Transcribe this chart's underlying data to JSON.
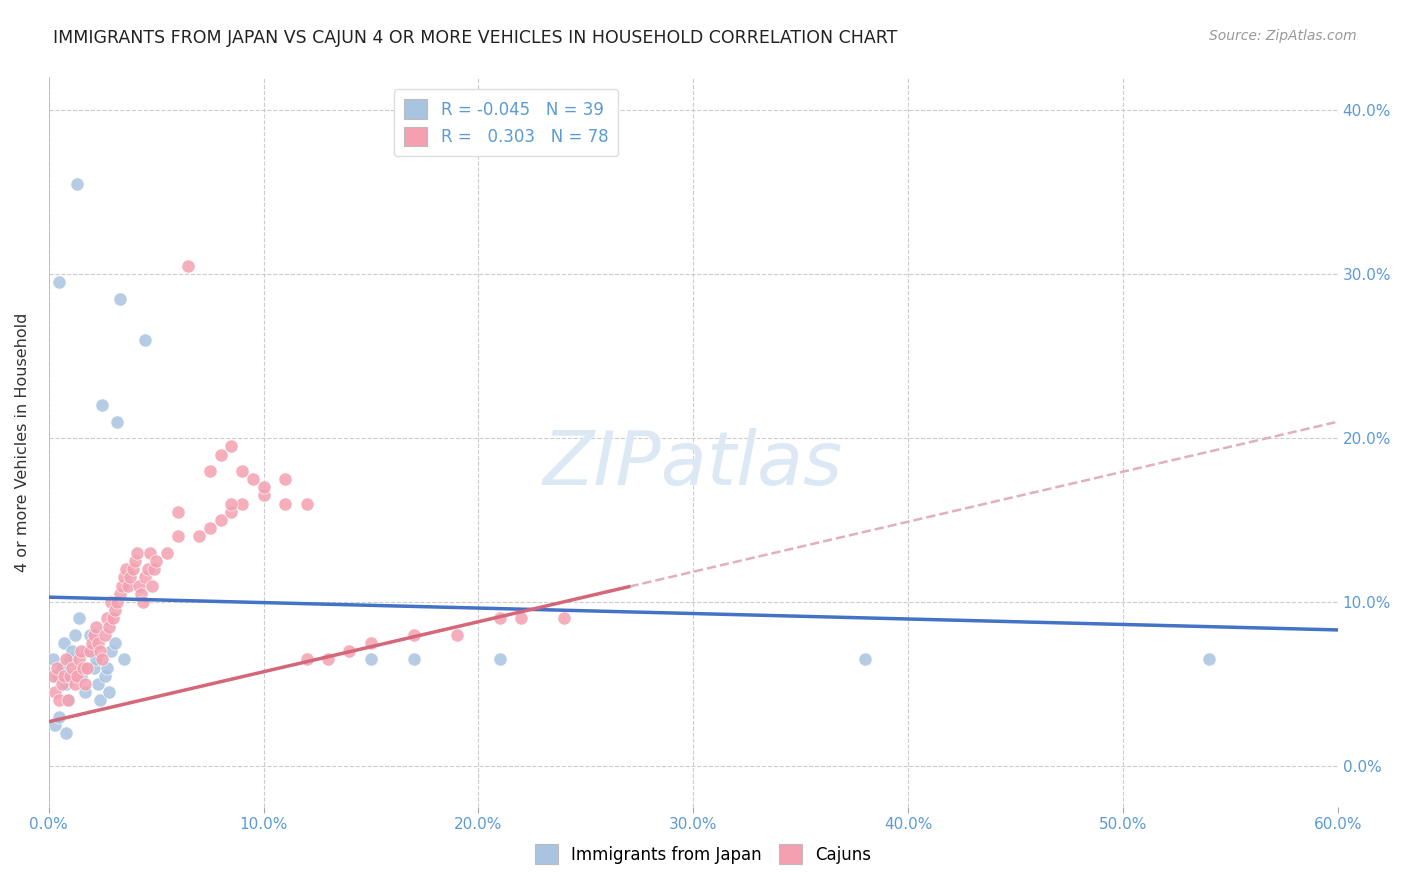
{
  "title": "IMMIGRANTS FROM JAPAN VS CAJUN 4 OR MORE VEHICLES IN HOUSEHOLD CORRELATION CHART",
  "source": "Source: ZipAtlas.com",
  "ylabel": "4 or more Vehicles in Household",
  "xlim": [
    0.0,
    0.6
  ],
  "ylim": [
    -0.025,
    0.42
  ],
  "xticks": [
    0.0,
    0.1,
    0.2,
    0.3,
    0.4,
    0.5,
    0.6
  ],
  "xticklabels": [
    "0.0%",
    "10.0%",
    "20.0%",
    "30.0%",
    "40.0%",
    "50.0%",
    "60.0%"
  ],
  "yticks": [
    0.0,
    0.1,
    0.2,
    0.3,
    0.4
  ],
  "yticklabels_right": [
    "0.0%",
    "10.0%",
    "20.0%",
    "30.0%",
    "40.0%"
  ],
  "blue_R": "-0.045",
  "blue_N": "39",
  "pink_R": "0.303",
  "pink_N": "78",
  "blue_color": "#a8c4e0",
  "pink_color": "#f4a0b0",
  "blue_line_color": "#4472c4",
  "pink_line_color": "#d4687a",
  "pink_dash_color": "#e0b0bc",
  "background_color": "#ffffff",
  "grid_color": "#cccccc",
  "blue_line_start_y": 0.103,
  "blue_line_end_y": 0.083,
  "pink_line_start_y": 0.0,
  "pink_line_end_x_solid": 0.27,
  "pink_line_start_x": 0.0,
  "watermark_color": "#dce9f5",
  "blue_scatter_x": [
    0.013,
    0.005,
    0.033,
    0.045,
    0.025,
    0.032,
    0.002,
    0.004,
    0.006,
    0.007,
    0.008,
    0.009,
    0.01,
    0.011,
    0.012,
    0.014,
    0.015,
    0.016,
    0.017,
    0.018,
    0.019,
    0.021,
    0.022,
    0.023,
    0.024,
    0.026,
    0.027,
    0.028,
    0.029,
    0.031,
    0.035,
    0.15,
    0.17,
    0.21,
    0.38,
    0.54,
    0.003,
    0.005,
    0.008
  ],
  "blue_scatter_y": [
    0.355,
    0.295,
    0.285,
    0.26,
    0.22,
    0.21,
    0.065,
    0.055,
    0.06,
    0.075,
    0.05,
    0.04,
    0.065,
    0.07,
    0.08,
    0.09,
    0.055,
    0.06,
    0.045,
    0.07,
    0.08,
    0.06,
    0.065,
    0.05,
    0.04,
    0.055,
    0.06,
    0.045,
    0.07,
    0.075,
    0.065,
    0.065,
    0.065,
    0.065,
    0.065,
    0.065,
    0.025,
    0.03,
    0.02
  ],
  "pink_scatter_x": [
    0.002,
    0.003,
    0.004,
    0.005,
    0.006,
    0.007,
    0.008,
    0.009,
    0.01,
    0.011,
    0.012,
    0.013,
    0.014,
    0.015,
    0.016,
    0.017,
    0.018,
    0.019,
    0.02,
    0.021,
    0.022,
    0.023,
    0.024,
    0.025,
    0.026,
    0.027,
    0.028,
    0.029,
    0.03,
    0.031,
    0.032,
    0.033,
    0.034,
    0.035,
    0.036,
    0.037,
    0.038,
    0.039,
    0.04,
    0.041,
    0.042,
    0.043,
    0.044,
    0.045,
    0.046,
    0.047,
    0.048,
    0.049,
    0.05,
    0.055,
    0.06,
    0.065,
    0.07,
    0.075,
    0.08,
    0.085,
    0.09,
    0.1,
    0.11,
    0.12,
    0.13,
    0.14,
    0.15,
    0.17,
    0.19,
    0.21,
    0.22,
    0.075,
    0.08,
    0.085,
    0.09,
    0.095,
    0.1,
    0.11,
    0.12,
    0.24,
    0.085,
    0.06
  ],
  "pink_scatter_y": [
    0.055,
    0.045,
    0.06,
    0.04,
    0.05,
    0.055,
    0.065,
    0.04,
    0.055,
    0.06,
    0.05,
    0.055,
    0.065,
    0.07,
    0.06,
    0.05,
    0.06,
    0.07,
    0.075,
    0.08,
    0.085,
    0.075,
    0.07,
    0.065,
    0.08,
    0.09,
    0.085,
    0.1,
    0.09,
    0.095,
    0.1,
    0.105,
    0.11,
    0.115,
    0.12,
    0.11,
    0.115,
    0.12,
    0.125,
    0.13,
    0.11,
    0.105,
    0.1,
    0.115,
    0.12,
    0.13,
    0.11,
    0.12,
    0.125,
    0.13,
    0.14,
    0.305,
    0.14,
    0.145,
    0.15,
    0.155,
    0.16,
    0.165,
    0.175,
    0.16,
    0.065,
    0.07,
    0.075,
    0.08,
    0.08,
    0.09,
    0.09,
    0.18,
    0.19,
    0.195,
    0.18,
    0.175,
    0.17,
    0.16,
    0.065,
    0.09,
    0.16,
    0.155
  ]
}
